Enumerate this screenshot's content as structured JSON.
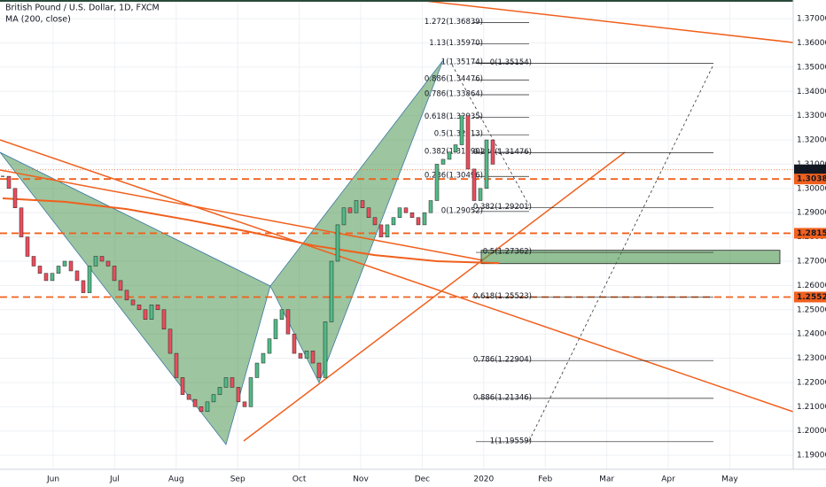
{
  "header": {
    "symbol": "British Pound / U.S. Dollar, 1D, FXCM",
    "indicator": "MA (200, close)"
  },
  "chart_data": {
    "type": "candlestick",
    "categories": [
      "Jun",
      "Jul",
      "Aug",
      "Sep",
      "Oct",
      "Nov",
      "Dec",
      "2020",
      "Feb",
      "Mar",
      "Apr",
      "May"
    ],
    "ylim": [
      1.1842,
      1.3777
    ],
    "yticks": [
      {
        "value": 1.37,
        "label": "1.37000"
      },
      {
        "value": 1.36,
        "label": "1.36000"
      },
      {
        "value": 1.35,
        "label": "1.35000"
      },
      {
        "value": 1.34,
        "label": "1.34000"
      },
      {
        "value": 1.33,
        "label": "1.33000"
      },
      {
        "value": 1.32,
        "label": "1.32000"
      },
      {
        "value": 1.31,
        "label": "1.31000"
      },
      {
        "value": 1.3,
        "label": "1.30000"
      },
      {
        "value": 1.29,
        "label": "1.29000"
      },
      {
        "value": 1.28,
        "label": "1.28000"
      },
      {
        "value": 1.27,
        "label": "1.27000"
      },
      {
        "value": 1.26,
        "label": "1.26000"
      },
      {
        "value": 1.25,
        "label": "1.25000"
      },
      {
        "value": 1.24,
        "label": "1.24000"
      },
      {
        "value": 1.23,
        "label": "1.23000"
      },
      {
        "value": 1.22,
        "label": "1.22000"
      },
      {
        "value": 1.21,
        "label": "1.21000"
      },
      {
        "value": 1.2,
        "label": "1.20000"
      },
      {
        "value": 1.19,
        "label": "1.19000"
      }
    ],
    "closes": [
      1.305,
      1.3,
      1.292,
      1.28,
      1.272,
      1.268,
      1.265,
      1.262,
      1.265,
      1.268,
      1.27,
      1.266,
      1.262,
      1.257,
      1.268,
      1.272,
      1.27,
      1.268,
      1.262,
      1.258,
      1.254,
      1.252,
      1.25,
      1.246,
      1.252,
      1.25,
      1.242,
      1.232,
      1.222,
      1.215,
      1.213,
      1.21,
      1.208,
      1.212,
      1.215,
      1.218,
      1.222,
      1.218,
      1.212,
      1.21,
      1.222,
      1.228,
      1.232,
      1.238,
      1.246,
      1.25,
      1.24,
      1.232,
      1.23,
      1.233,
      1.228,
      1.222,
      1.245,
      1.27,
      1.285,
      1.292,
      1.29,
      1.295,
      1.292,
      1.288,
      1.285,
      1.28,
      1.285,
      1.288,
      1.292,
      1.29,
      1.288,
      1.285,
      1.29,
      1.295,
      1.31,
      1.312,
      1.315,
      1.318,
      1.33,
      1.308,
      1.295,
      1.3,
      1.32,
      1.31
    ],
    "up_color": "#53b987",
    "down_color": "#eb4d5c",
    "ma": [
      1.2959,
      1.2945,
      1.2915,
      1.287,
      1.282,
      1.2765,
      1.2725,
      1.27,
      1.2692
    ],
    "ma_color": "#f0601d",
    "price_tags": [
      {
        "value": 1.3077,
        "label": "1.30770",
        "color": "#131722"
      },
      {
        "value": 1.30389,
        "label": "1.30389",
        "color": "#f0601d"
      },
      {
        "value": 1.28152,
        "label": "1.28152",
        "color": "#f0601d"
      },
      {
        "value": 1.25522,
        "label": "1.25522",
        "color": "#f0601d"
      }
    ],
    "fib_levels": [
      {
        "label": "1.272(1.36839)",
        "price": 1.36839
      },
      {
        "label": "1.13(1.35970)",
        "price": 1.3597
      },
      {
        "label": "1(1.35174)",
        "price": 1.35174
      },
      {
        "label": "0.886(1.34476)",
        "price": 1.34476
      },
      {
        "label": "0.786(1.33864)",
        "price": 1.33864
      },
      {
        "label": "0.618(1.32935)",
        "price": 1.32935
      },
      {
        "label": "0.5(1.32213)",
        "price": 1.32213
      },
      {
        "label": "0.382(1.31490)",
        "price": 1.3149
      },
      {
        "label": "0.236(1.30496)",
        "price": 1.30496
      },
      {
        "label": "0(1.29052)",
        "price": 1.29052
      }
    ],
    "fib_levels_2": [
      {
        "label": "0(1.35154)",
        "price": 1.35154
      },
      {
        "label": "0.236(1.31476)",
        "price": 1.31476
      },
      {
        "label": "0.382(1.29201)",
        "price": 1.29201
      },
      {
        "label": "0.5(1.27362)",
        "price": 1.27362
      },
      {
        "label": "0.618(1.25523)",
        "price": 1.25523
      },
      {
        "label": "0.786(1.22904)",
        "price": 1.22904
      },
      {
        "label": "0.886(1.21346)",
        "price": 1.21346
      },
      {
        "label": "1(1.19559)",
        "price": 1.19559
      }
    ],
    "zone": [
      1.2745,
      1.269
    ]
  }
}
